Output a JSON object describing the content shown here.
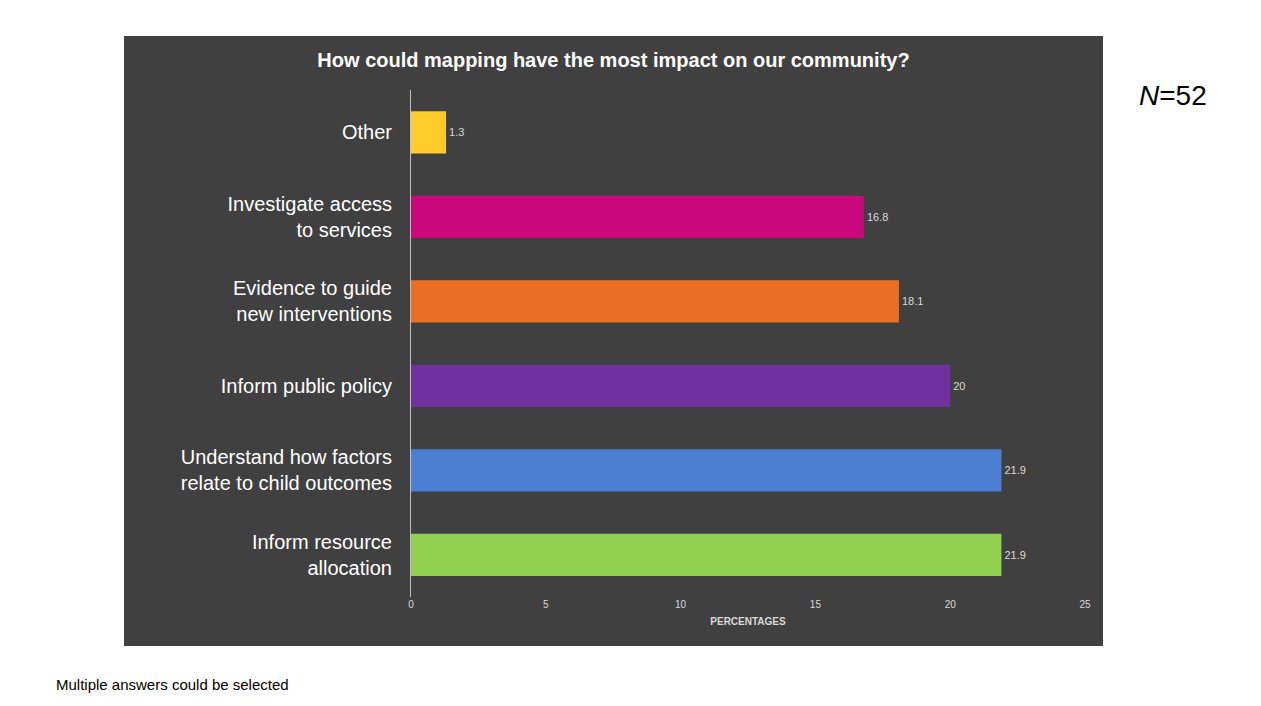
{
  "chart_data": {
    "type": "bar",
    "orientation": "horizontal",
    "title": "How could mapping have the most impact on our community?",
    "xlabel": "PERCENTAGES",
    "categories": [
      "Other",
      "Investigate access to services",
      "Evidence to guide new interventions",
      "Inform public policy",
      "Understand how factors relate to child outcomes",
      "Inform resource allocation"
    ],
    "values": [
      1.3,
      16.8,
      18.1,
      20,
      21.9,
      21.9
    ],
    "colors": [
      "#ffcc29",
      "#c8087b",
      "#ea6f22",
      "#7030a0",
      "#4a7fd4",
      "#92d050"
    ],
    "xlim": [
      0,
      25
    ],
    "xticks": [
      0,
      5,
      10,
      15,
      20,
      25
    ],
    "data_labels": true,
    "grid": false,
    "annotations": [
      "N=52",
      "Multiple answers could be selected"
    ]
  }
}
